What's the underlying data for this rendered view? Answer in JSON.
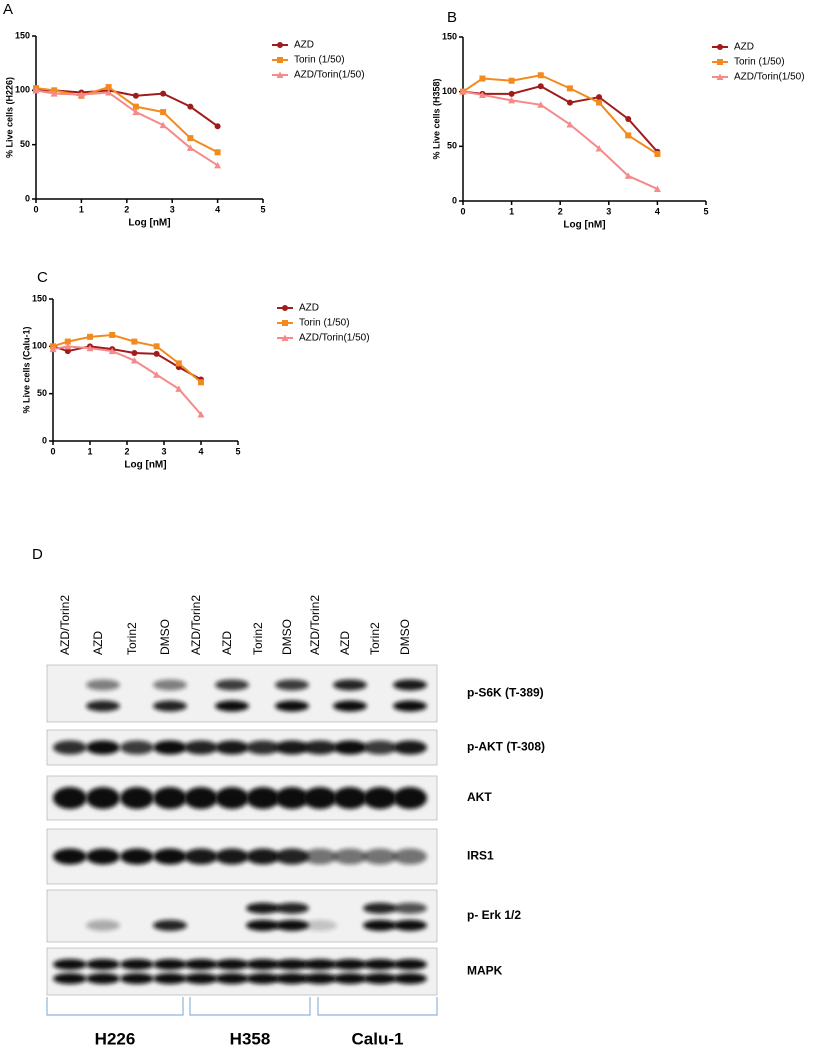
{
  "chart_data": [
    {
      "type": "line",
      "title": "A",
      "xlabel": "Log [nM]",
      "ylabel": "% Live cells (H226)",
      "xlim": [
        0,
        5
      ],
      "ylim": [
        0,
        150
      ],
      "xticks": [
        0,
        1,
        2,
        3,
        4,
        5
      ],
      "yticks": [
        0,
        50,
        100,
        150
      ],
      "x": [
        0,
        0.4,
        1,
        1.6,
        2.2,
        2.8,
        3.4,
        4
      ],
      "series": [
        {
          "name": "AZD",
          "color": "#a01c1c",
          "values": [
            100,
            100,
            98,
            100,
            95,
            97,
            85,
            67
          ]
        },
        {
          "name": "Torin (1/50)",
          "color": "#f28a1e",
          "values": [
            102,
            100,
            95,
            103,
            85,
            80,
            56,
            43
          ]
        },
        {
          "name": "AZD/Torin(1/50)",
          "color": "#f48a8a",
          "values": [
            100,
            97,
            96,
            98,
            80,
            68,
            47,
            31
          ]
        }
      ]
    },
    {
      "type": "line",
      "title": "B",
      "xlabel": "Log [nM]",
      "ylabel": "% Live cells (H358)",
      "xlim": [
        0,
        5
      ],
      "ylim": [
        0,
        150
      ],
      "xticks": [
        0,
        1,
        2,
        3,
        4,
        5
      ],
      "yticks": [
        0,
        50,
        100,
        150
      ],
      "x": [
        0,
        0.4,
        1,
        1.6,
        2.2,
        2.8,
        3.4,
        4
      ],
      "series": [
        {
          "name": "AZD",
          "color": "#a01c1c",
          "values": [
            100,
            98,
            98,
            105,
            90,
            95,
            75,
            45
          ]
        },
        {
          "name": "Torin (1/50)",
          "color": "#f28a1e",
          "values": [
            100,
            112,
            110,
            115,
            103,
            90,
            60,
            43
          ]
        },
        {
          "name": "AZD/Torin(1/50)",
          "color": "#f48a8a",
          "values": [
            100,
            97,
            92,
            88,
            70,
            48,
            23,
            11
          ]
        }
      ]
    },
    {
      "type": "line",
      "title": "C",
      "xlabel": "Log [nM]",
      "ylabel": "% Live cells (Calu-1)",
      "xlim": [
        0,
        5
      ],
      "ylim": [
        0,
        150
      ],
      "xticks": [
        0,
        1,
        2,
        3,
        4,
        5
      ],
      "yticks": [
        0,
        50,
        100,
        150
      ],
      "x": [
        0,
        0.4,
        1,
        1.6,
        2.2,
        2.8,
        3.4,
        4
      ],
      "series": [
        {
          "name": "AZD",
          "color": "#a01c1c",
          "values": [
            100,
            95,
            100,
            97,
            93,
            92,
            78,
            65
          ]
        },
        {
          "name": "Torin (1/50)",
          "color": "#f28a1e",
          "values": [
            100,
            105,
            110,
            112,
            105,
            100,
            82,
            62
          ]
        },
        {
          "name": "AZD/Torin(1/50)",
          "color": "#f48a8a",
          "values": [
            97,
            100,
            98,
            95,
            85,
            70,
            55,
            28
          ]
        }
      ]
    }
  ],
  "blot": {
    "title": "D",
    "lanes": [
      "AZD/Torin2",
      "AZD",
      "Torin2",
      "DMSO",
      "AZD/Torin2",
      "AZD",
      "Torin2",
      "DMSO",
      "AZD/Torin2",
      "AZD",
      "Torin2",
      "DMSO"
    ],
    "rows": [
      "p-S6K (T-389)",
      "p-AKT (T-308)",
      "AKT",
      "IRS1",
      "p- Erk 1/2",
      "MAPK"
    ],
    "groups": [
      "H226",
      "H358",
      "Calu-1"
    ]
  }
}
